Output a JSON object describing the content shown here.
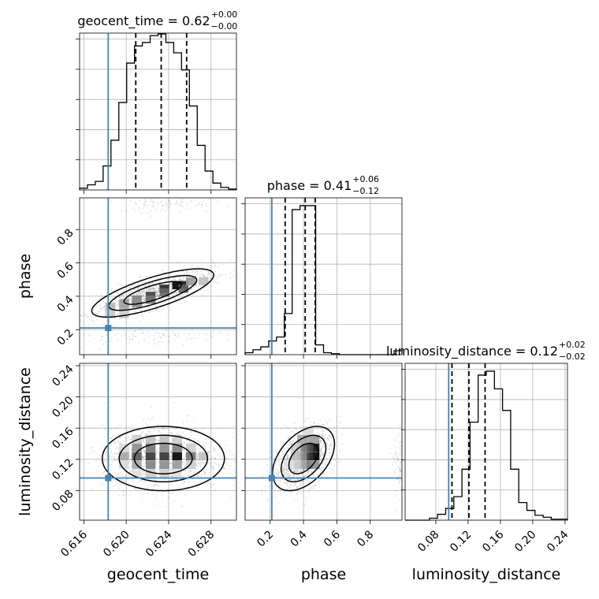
{
  "colors": {
    "truth": "#4682b4",
    "hist": "#000000",
    "grid": "#b0b0b0",
    "samples": "#000000"
  },
  "chart_data": {
    "type": "corner",
    "parameters": [
      {
        "name": "geocent_time",
        "title": "geocent_time = 0.62",
        "title_upper": "+0.00",
        "title_lower": "−0.00",
        "median": 0.6233,
        "q16": 0.6209,
        "q84": 0.6257,
        "truth": 0.6183,
        "range": [
          0.6156,
          0.6304
        ],
        "ticks": [
          0.616,
          0.62,
          0.624,
          0.628
        ],
        "tick_labels": [
          "0.616",
          "0.620",
          "0.624",
          "0.628"
        ],
        "hist_counts": [
          2,
          6,
          10,
          28,
          58,
          102,
          148,
          168,
          172,
          180,
          182,
          172,
          160,
          140,
          98,
          52,
          22,
          8,
          3,
          1
        ],
        "hist_max": 183
      },
      {
        "name": "phase",
        "title": "phase = 0.41",
        "title_upper": "+0.06",
        "title_lower": "−0.12",
        "median": 0.41,
        "q16": 0.29,
        "q84": 0.47,
        "truth": 0.21,
        "range": [
          0.05,
          0.99
        ],
        "ticks": [
          0.2,
          0.4,
          0.6,
          0.8
        ],
        "tick_labels": [
          "0.2",
          "0.4",
          "0.6",
          "0.8"
        ],
        "hist_counts": [
          2,
          5,
          8,
          14,
          18,
          42,
          148,
          152,
          152,
          10,
          2,
          1,
          0,
          0,
          0,
          0,
          0,
          0,
          0,
          4
        ],
        "hist_max": 160
      },
      {
        "name": "luminosity_distance",
        "title": "luminosity_distance = 0.12",
        "title_upper": "+0.02",
        "title_lower": "−0.02",
        "median": 0.121,
        "q16": 0.1,
        "q84": 0.141,
        "truth": 0.096,
        "range": [
          0.042,
          0.243
        ],
        "ticks": [
          0.08,
          0.12,
          0.16,
          0.2,
          0.24
        ],
        "tick_labels": [
          "0.08",
          "0.12",
          "0.16",
          "0.20",
          "0.24"
        ],
        "hist_counts": [
          0,
          0,
          0,
          2,
          6,
          12,
          24,
          52,
          100,
          148,
          152,
          134,
          112,
          52,
          18,
          10,
          5,
          3,
          1,
          1
        ],
        "hist_max": 160
      }
    ],
    "pairs": [
      {
        "x": "geocent_time",
        "y": "phase",
        "modes": [
          {
            "x": 0.6225,
            "y": 0.42,
            "sx": 0.0028,
            "sy": 0.07,
            "rho": 0.75,
            "w": 0.84
          },
          {
            "x": 0.6237,
            "y": 0.96,
            "sx": 0.0022,
            "sy": 0.03,
            "rho": 0,
            "w": 0.08
          },
          {
            "x": 0.6215,
            "y": 0.16,
            "sx": 0.0038,
            "sy": 0.025,
            "rho": 0.1,
            "w": 0.08
          }
        ],
        "density": [
          {
            "x": 0.6223,
            "y": 0.402,
            "v": 0.75
          },
          {
            "x": 0.6236,
            "y": 0.445,
            "v": 0.85
          },
          {
            "x": 0.6248,
            "y": 0.467,
            "v": 1.0
          },
          {
            "x": 0.6254,
            "y": 0.467,
            "v": 0.9
          },
          {
            "x": 0.6254,
            "y": 0.445,
            "v": 0.6
          },
          {
            "x": 0.6236,
            "y": 0.423,
            "v": 0.6
          },
          {
            "x": 0.6223,
            "y": 0.38,
            "v": 0.55
          },
          {
            "x": 0.621,
            "y": 0.38,
            "v": 0.5
          },
          {
            "x": 0.621,
            "y": 0.358,
            "v": 0.45
          },
          {
            "x": 0.6198,
            "y": 0.358,
            "v": 0.4
          },
          {
            "x": 0.6198,
            "y": 0.336,
            "v": 0.35
          },
          {
            "x": 0.6185,
            "y": 0.336,
            "v": 0.3
          },
          {
            "x": 0.6185,
            "y": 0.314,
            "v": 0.25
          },
          {
            "x": 0.6185,
            "y": 0.292,
            "v": 0.2
          },
          {
            "x": 0.6198,
            "y": 0.292,
            "v": 0.2
          },
          {
            "x": 0.6261,
            "y": 0.489,
            "v": 0.4
          },
          {
            "x": 0.6273,
            "y": 0.489,
            "v": 0.25
          }
        ]
      },
      {
        "x": "geocent_time",
        "y": "luminosity_distance",
        "modes": [
          {
            "x": 0.6235,
            "y": 0.121,
            "sx": 0.0028,
            "sy": 0.02,
            "rho": 0,
            "w": 1
          }
        ],
        "density": [
          {
            "x": 0.6248,
            "y": 0.124,
            "v": 1.0
          },
          {
            "x": 0.6236,
            "y": 0.124,
            "v": 0.8
          },
          {
            "x": 0.6223,
            "y": 0.124,
            "v": 0.8
          },
          {
            "x": 0.621,
            "y": 0.124,
            "v": 0.65
          },
          {
            "x": 0.6261,
            "y": 0.124,
            "v": 0.55
          },
          {
            "x": 0.6223,
            "y": 0.135,
            "v": 0.55
          },
          {
            "x": 0.6236,
            "y": 0.135,
            "v": 0.45
          },
          {
            "x": 0.621,
            "y": 0.135,
            "v": 0.45
          },
          {
            "x": 0.6248,
            "y": 0.135,
            "v": 0.5
          },
          {
            "x": 0.6223,
            "y": 0.113,
            "v": 0.5
          },
          {
            "x": 0.6236,
            "y": 0.113,
            "v": 0.45
          },
          {
            "x": 0.6248,
            "y": 0.113,
            "v": 0.4
          },
          {
            "x": 0.621,
            "y": 0.113,
            "v": 0.35
          },
          {
            "x": 0.6198,
            "y": 0.124,
            "v": 0.35
          },
          {
            "x": 0.6273,
            "y": 0.124,
            "v": 0.25
          },
          {
            "x": 0.6223,
            "y": 0.146,
            "v": 0.25
          },
          {
            "x": 0.6236,
            "y": 0.146,
            "v": 0.25
          },
          {
            "x": 0.621,
            "y": 0.146,
            "v": 0.2
          },
          {
            "x": 0.6248,
            "y": 0.146,
            "v": 0.2
          },
          {
            "x": 0.6223,
            "y": 0.102,
            "v": 0.2
          },
          {
            "x": 0.6236,
            "y": 0.102,
            "v": 0.2
          },
          {
            "x": 0.6261,
            "y": 0.135,
            "v": 0.2
          },
          {
            "x": 0.6261,
            "y": 0.113,
            "v": 0.2
          },
          {
            "x": 0.6198,
            "y": 0.135,
            "v": 0.15
          },
          {
            "x": 0.6198,
            "y": 0.113,
            "v": 0.15
          },
          {
            "x": 0.621,
            "y": 0.102,
            "v": 0.12
          },
          {
            "x": 0.6248,
            "y": 0.102,
            "v": 0.12
          }
        ]
      },
      {
        "x": "phase",
        "y": "luminosity_distance",
        "modes": [
          {
            "x": 0.4,
            "y": 0.121,
            "sx": 0.09,
            "sy": 0.02,
            "rho": 0.45,
            "w": 0.94
          },
          {
            "x": 0.975,
            "y": 0.11,
            "sx": 0.018,
            "sy": 0.02,
            "rho": 0,
            "w": 0.06
          }
        ],
        "density": [
          {
            "x": 0.466,
            "y": 0.124,
            "v": 1.0
          },
          {
            "x": 0.466,
            "y": 0.135,
            "v": 0.95
          },
          {
            "x": 0.429,
            "y": 0.135,
            "v": 0.7
          },
          {
            "x": 0.429,
            "y": 0.124,
            "v": 0.8
          },
          {
            "x": 0.429,
            "y": 0.113,
            "v": 0.55
          },
          {
            "x": 0.391,
            "y": 0.135,
            "v": 0.5
          },
          {
            "x": 0.391,
            "y": 0.124,
            "v": 0.45
          },
          {
            "x": 0.391,
            "y": 0.146,
            "v": 0.35
          },
          {
            "x": 0.391,
            "y": 0.113,
            "v": 0.35
          },
          {
            "x": 0.466,
            "y": 0.113,
            "v": 0.45
          },
          {
            "x": 0.466,
            "y": 0.146,
            "v": 0.4
          },
          {
            "x": 0.429,
            "y": 0.146,
            "v": 0.35
          },
          {
            "x": 0.354,
            "y": 0.124,
            "v": 0.25
          },
          {
            "x": 0.354,
            "y": 0.113,
            "v": 0.2
          },
          {
            "x": 0.354,
            "y": 0.135,
            "v": 0.2
          },
          {
            "x": 0.429,
            "y": 0.157,
            "v": 0.15
          },
          {
            "x": 0.316,
            "y": 0.113,
            "v": 0.12
          }
        ]
      }
    ]
  }
}
